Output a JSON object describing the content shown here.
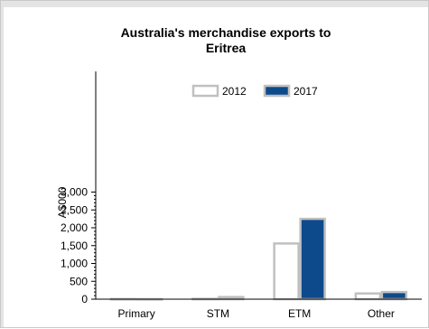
{
  "chart_data": {
    "type": "bar",
    "title_lines": [
      "Australia's merchandise exports to",
      "Eritrea"
    ],
    "xlabel": "",
    "ylabel": "A$000",
    "categories": [
      "Primary",
      "STM",
      "ETM",
      "Other"
    ],
    "series": [
      {
        "name": "2012",
        "values": [
          5,
          10,
          1560,
          160
        ],
        "fill": "#ffffff",
        "stroke": "#c0c0c0"
      },
      {
        "name": "2017",
        "values": [
          2,
          60,
          2250,
          200
        ],
        "fill": "#0d4a8c",
        "stroke": "#c0c0c0"
      }
    ],
    "ylim": [
      0,
      3100
    ],
    "yticks": [
      0,
      500,
      1000,
      1500,
      2000,
      2500,
      3000
    ],
    "ytick_labels": [
      "0",
      "500",
      "1,000",
      "1,500",
      "2,000",
      "2,500",
      "3,000"
    ],
    "legend_position": "top",
    "grid": false
  },
  "colors": {
    "frame_border": "#c9c9c9",
    "axis": "#000000"
  }
}
